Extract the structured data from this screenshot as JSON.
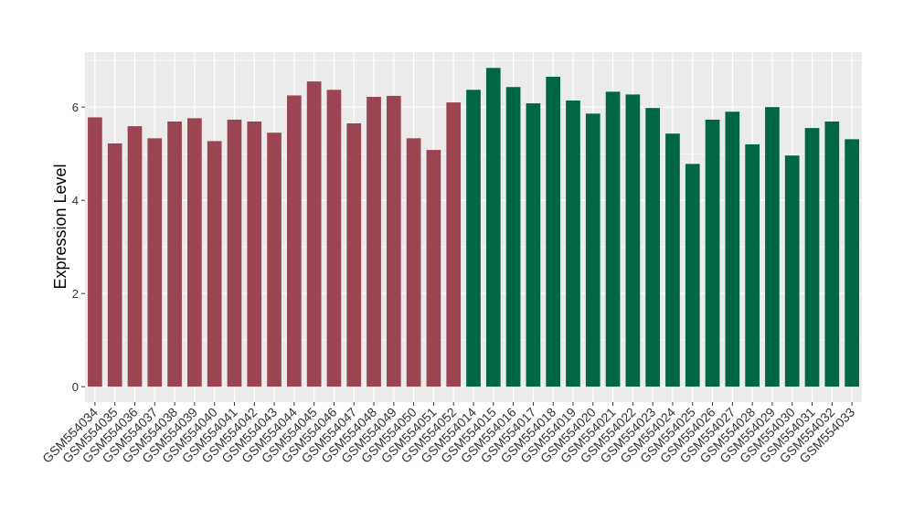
{
  "chart_data": {
    "type": "bar",
    "y_label": "Expression Level",
    "categories": [
      "GSM554034",
      "GSM554035",
      "GSM554036",
      "GSM554037",
      "GSM554038",
      "GSM554039",
      "GSM554040",
      "GSM554041",
      "GSM554042",
      "GSM554043",
      "GSM554044",
      "GSM554045",
      "GSM554046",
      "GSM554047",
      "GSM554048",
      "GSM554049",
      "GSM554050",
      "GSM554051",
      "GSM554052",
      "GSM554014",
      "GSM554015",
      "GSM554016",
      "GSM554017",
      "GSM554018",
      "GSM554019",
      "GSM554020",
      "GSM554021",
      "GSM554022",
      "GSM554023",
      "GSM554024",
      "GSM554025",
      "GSM554026",
      "GSM554027",
      "GSM554028",
      "GSM554029",
      "GSM554030",
      "GSM554031",
      "GSM554032",
      "GSM554033"
    ],
    "values": [
      5.78,
      5.22,
      5.59,
      5.33,
      5.69,
      5.76,
      5.27,
      5.73,
      5.69,
      5.45,
      6.25,
      6.55,
      6.37,
      5.65,
      6.22,
      6.24,
      5.33,
      5.08,
      6.1,
      6.37,
      6.84,
      6.43,
      6.08,
      6.65,
      6.14,
      5.86,
      6.33,
      6.27,
      5.98,
      5.43,
      4.78,
      5.73,
      5.9,
      5.2,
      6.0,
      4.96,
      5.55,
      5.69,
      5.31
    ],
    "colors": [
      "#9b4452",
      "#9b4452",
      "#9b4452",
      "#9b4452",
      "#9b4452",
      "#9b4452",
      "#9b4452",
      "#9b4452",
      "#9b4452",
      "#9b4452",
      "#9b4452",
      "#9b4452",
      "#9b4452",
      "#9b4452",
      "#9b4452",
      "#9b4452",
      "#9b4452",
      "#9b4452",
      "#9b4452",
      "#006644",
      "#006644",
      "#006644",
      "#006644",
      "#006644",
      "#006644",
      "#006644",
      "#006644",
      "#006644",
      "#006644",
      "#006644",
      "#006644",
      "#006644",
      "#006644",
      "#006644",
      "#006644",
      "#006644",
      "#006644",
      "#006644",
      "#006644"
    ],
    "ylim": [
      -0.33,
      7.18
    ],
    "yticks": [
      0,
      2,
      4,
      6
    ],
    "minor_yticks": [
      1,
      3,
      5,
      7
    ],
    "grid": true
  }
}
